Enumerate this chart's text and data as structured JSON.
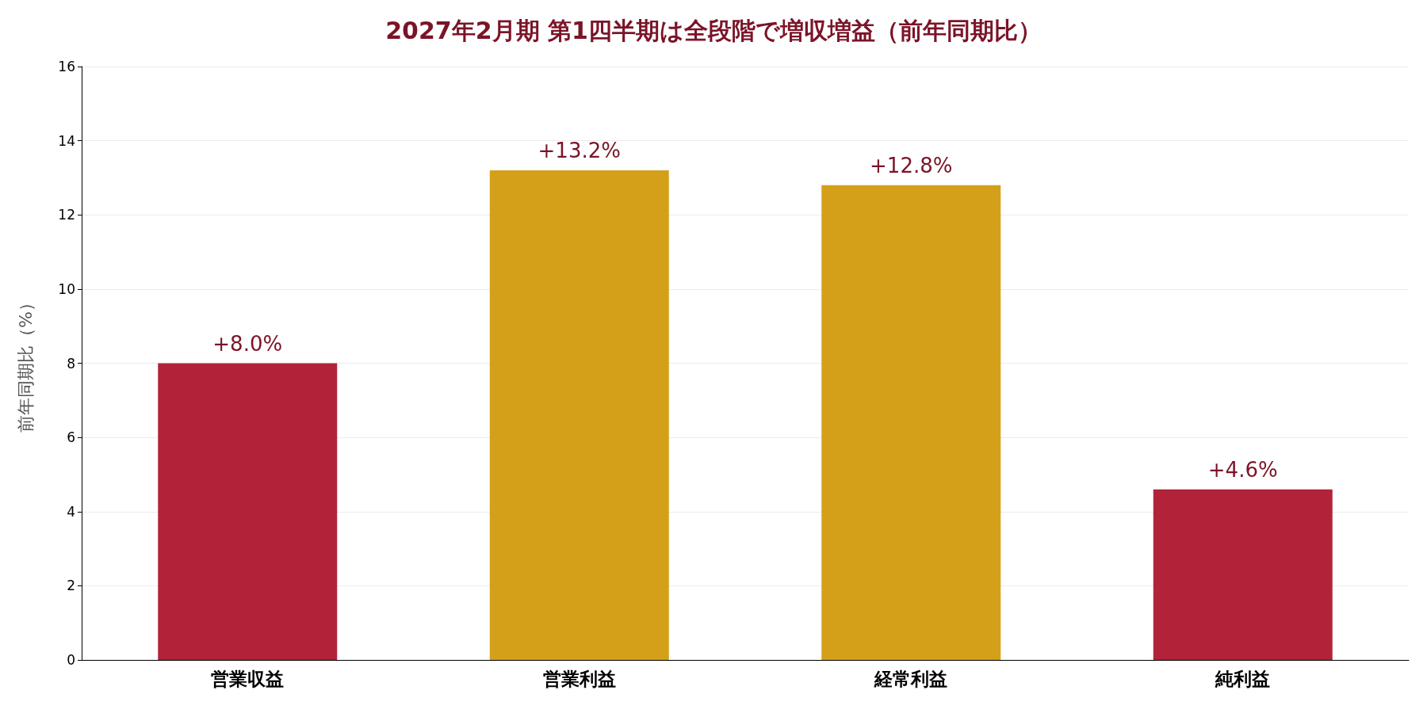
{
  "chart_data": {
    "type": "bar",
    "title": "2027年2月期 第1四半期は全段階で増収増益（前年同期比）",
    "ylabel": "前年同期比（%）",
    "categories": [
      "営業収益",
      "営業利益",
      "経常利益",
      "純利益"
    ],
    "values": [
      8.0,
      13.2,
      12.8,
      4.6
    ],
    "colors": [
      "#b22339",
      "#d4a01a",
      "#d4a01a",
      "#b22339"
    ],
    "value_labels": [
      "+8.0%",
      "+13.2%",
      "+12.8%",
      "+4.6%"
    ],
    "ylim": [
      0,
      16
    ],
    "yticks": [
      0,
      2,
      4,
      6,
      8,
      10,
      12,
      14,
      16
    ],
    "grid": "y"
  }
}
